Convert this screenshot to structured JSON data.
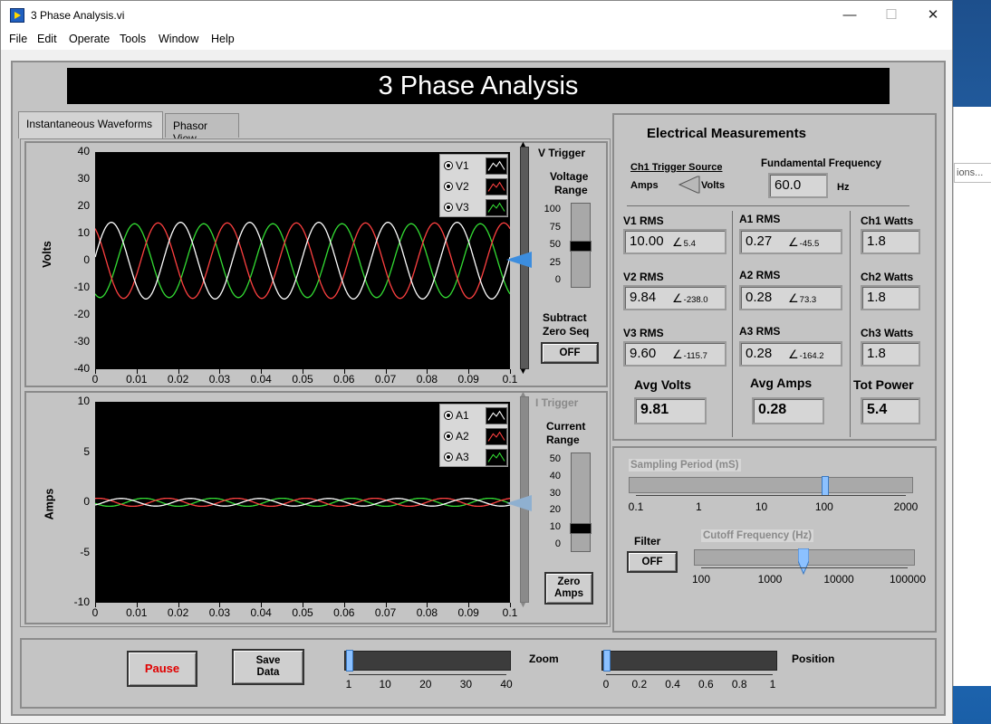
{
  "window": {
    "title": "3 Phase Analysis.vi",
    "minimize": "—",
    "maximize": "☐",
    "close": "✕"
  },
  "menu": [
    "File",
    "Edit",
    "Operate",
    "Tools",
    "Window",
    "Help"
  ],
  "banner": "3 Phase Analysis",
  "tabs": [
    {
      "label": "Instantaneous Waveforms"
    },
    {
      "label": "Phasor View"
    }
  ],
  "background_window_text": "ions...",
  "volts_graph": {
    "ylabel": "Volts",
    "yticks": [
      "40",
      "30",
      "20",
      "10",
      "0",
      "-10",
      "-20",
      "-30",
      "-40"
    ],
    "xticks": [
      "0",
      "0.01",
      "0.02",
      "0.03",
      "0.04",
      "0.05",
      "0.06",
      "0.07",
      "0.08",
      "0.09",
      "0.1"
    ],
    "legend": [
      {
        "name": "V1",
        "color": "#ffffff"
      },
      {
        "name": "V2",
        "color": "#ff4040"
      },
      {
        "name": "V3",
        "color": "#33dd33"
      }
    ],
    "trigger_label": "V Trigger",
    "range_label_1": "Voltage",
    "range_label_2": "Range",
    "range_ticks": [
      "100",
      "75",
      "50",
      "25",
      "0"
    ],
    "range_value": 50,
    "subtract_label_1": "Subtract",
    "subtract_label_2": "Zero Seq",
    "subtract_button": "OFF"
  },
  "amps_graph": {
    "ylabel": "Amps",
    "yticks": [
      "10",
      "5",
      "0",
      "-5",
      "-10"
    ],
    "xticks": [
      "0",
      "0.01",
      "0.02",
      "0.03",
      "0.04",
      "0.05",
      "0.06",
      "0.07",
      "0.08",
      "0.09",
      "0.1"
    ],
    "legend": [
      {
        "name": "A1",
        "color": "#ffffff"
      },
      {
        "name": "A2",
        "color": "#ff4040"
      },
      {
        "name": "A3",
        "color": "#33dd33"
      }
    ],
    "trigger_label": "I Trigger",
    "range_label_1": "Current",
    "range_label_2": "Range",
    "range_ticks": [
      "50",
      "40",
      "30",
      "20",
      "10",
      "0"
    ],
    "range_value": 10,
    "zero_button_1": "Zero",
    "zero_button_2": "Amps"
  },
  "chart_data": [
    {
      "type": "line",
      "title": "",
      "xlabel": "",
      "ylabel": "Volts",
      "xlim": [
        0,
        0.1
      ],
      "ylim": [
        -40,
        40
      ],
      "frequency_hz": 60,
      "series": [
        {
          "name": "V1",
          "amplitude": 14.1,
          "phase_deg": 5.4,
          "color": "#ffffff"
        },
        {
          "name": "V2",
          "amplitude": 13.9,
          "phase_deg": -238.0,
          "color": "#ff4040"
        },
        {
          "name": "V3",
          "amplitude": 13.6,
          "phase_deg": -115.7,
          "color": "#33dd33"
        }
      ]
    },
    {
      "type": "line",
      "title": "",
      "xlabel": "",
      "ylabel": "Amps",
      "xlim": [
        0,
        0.1
      ],
      "ylim": [
        -10,
        10
      ],
      "frequency_hz": 60,
      "series": [
        {
          "name": "A1",
          "amplitude": 0.38,
          "phase_deg": -45.5,
          "color": "#ffffff"
        },
        {
          "name": "A2",
          "amplitude": 0.4,
          "phase_deg": 73.3,
          "color": "#ff4040"
        },
        {
          "name": "A3",
          "amplitude": 0.4,
          "phase_deg": -164.2,
          "color": "#33dd33"
        }
      ]
    }
  ],
  "measurements": {
    "title": "Electrical Measurements",
    "trigger_source_label": "Ch1 Trigger Source",
    "trigger_amps": "Amps",
    "trigger_volts": "Volts",
    "freq_label": "Fundamental Frequency",
    "freq_value": "60.0",
    "freq_unit": "Hz",
    "v1_label": "V1 RMS",
    "v1_value": "10.00",
    "v1_angle": "5.4",
    "v2_label": "V2 RMS",
    "v2_value": "9.84",
    "v2_angle": "-238.0",
    "v3_label": "V3 RMS",
    "v3_value": "9.60",
    "v3_angle": "-115.7",
    "a1_label": "A1 RMS",
    "a1_value": "0.27",
    "a1_angle": "-45.5",
    "a2_label": "A2 RMS",
    "a2_value": "0.28",
    "a2_angle": "73.3",
    "a3_label": "A3 RMS",
    "a3_value": "0.28",
    "a3_angle": "-164.2",
    "w1_label": "Ch1 Watts",
    "w1_value": "1.8",
    "w2_label": "Ch2 Watts",
    "w2_value": "1.8",
    "w3_label": "Ch3 Watts",
    "w3_value": "1.8",
    "avg_volts_label": "Avg Volts",
    "avg_volts_value": "9.81",
    "avg_amps_label": "Avg Amps",
    "avg_amps_value": "0.28",
    "tot_power_label": "Tot Power",
    "tot_power_value": "5.4"
  },
  "sampling": {
    "label": "Sampling Period (mS)",
    "ticks": [
      "0.1",
      "1",
      "10",
      "100",
      "2000"
    ],
    "value": 100,
    "filter_label": "Filter",
    "filter_button": "OFF",
    "cutoff_label": "Cutoff Frequency (Hz)",
    "cutoff_ticks": [
      "100",
      "1000",
      "10000",
      "100000"
    ],
    "cutoff_value": 3000
  },
  "bottom": {
    "pause_button": "Pause",
    "save_1": "Save",
    "save_2": "Data",
    "zoom_label": "Zoom",
    "zoom_ticks": [
      "1",
      "10",
      "20",
      "30",
      "40"
    ],
    "zoom_value": 1,
    "position_label": "Position",
    "position_ticks": [
      "0",
      "0.2",
      "0.4",
      "0.6",
      "0.8",
      "1"
    ],
    "position_value": 0
  }
}
